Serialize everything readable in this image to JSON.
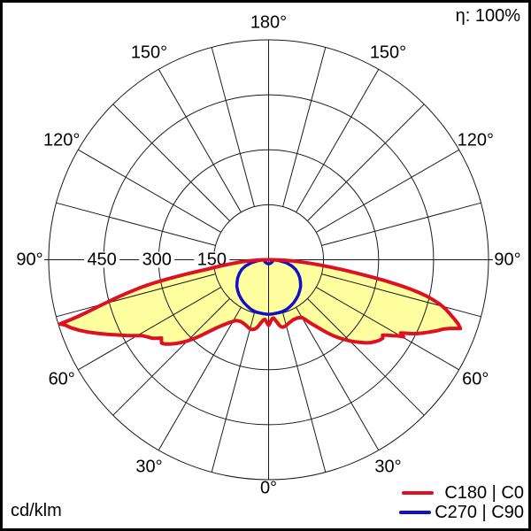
{
  "figure": {
    "efficiency_label": "η: 100%",
    "unit_label": "cd/klm"
  },
  "chart_data": {
    "type": "polar",
    "subtype": "luminous-intensity-distribution",
    "unit": "cd/klm",
    "efficiency_percent": 100,
    "max_value": 600,
    "rings": [
      150,
      300,
      450,
      600
    ],
    "ring_labels": [
      "150",
      "300",
      "450"
    ],
    "angle_step_deg": 15,
    "angle_label_step_deg": 30,
    "angle_labels": [
      "0°",
      "30°",
      "60°",
      "90°",
      "120°",
      "150°",
      "180°"
    ],
    "grid_color": "#1a1a1a",
    "series": [
      {
        "name": "C180 | C0",
        "color": "#dd1122",
        "fill": "#ffffa0",
        "left": [
          [
            90,
            4
          ],
          [
            88.5,
            25
          ],
          [
            87,
            50
          ],
          [
            85.5,
            75
          ],
          [
            84,
            100
          ],
          [
            83,
            122
          ],
          [
            82,
            148
          ],
          [
            81.2,
            172
          ],
          [
            80.6,
            200
          ],
          [
            80.1,
            228
          ],
          [
            79.7,
            252
          ],
          [
            79.3,
            278
          ],
          [
            78.9,
            300
          ],
          [
            78.5,
            322
          ],
          [
            78.1,
            342
          ],
          [
            77.7,
            360
          ],
          [
            77.2,
            378
          ],
          [
            76.7,
            398
          ],
          [
            76.2,
            418
          ],
          [
            75.7,
            438
          ],
          [
            75.2,
            458
          ],
          [
            74.7,
            478
          ],
          [
            74.2,
            500
          ],
          [
            73.8,
            520
          ],
          [
            73.4,
            545
          ],
          [
            73.1,
            570
          ],
          [
            72.9,
            596
          ],
          [
            72.2,
            583
          ],
          [
            71,
            570
          ],
          [
            69.5,
            550
          ],
          [
            68,
            528
          ],
          [
            66.5,
            505
          ],
          [
            65,
            482
          ],
          [
            63.5,
            460
          ],
          [
            62,
            440
          ],
          [
            60.5,
            420
          ],
          [
            59,
            402
          ],
          [
            57.5,
            392
          ],
          [
            56,
            383
          ],
          [
            54.8,
            372
          ],
          [
            53.8,
            362
          ],
          [
            53,
            366
          ],
          [
            52,
            370
          ],
          [
            50.8,
            364
          ],
          [
            49.5,
            354
          ],
          [
            48,
            342
          ],
          [
            46.5,
            328
          ],
          [
            45,
            313
          ],
          [
            43.5,
            297
          ],
          [
            42,
            280
          ],
          [
            40.5,
            263
          ],
          [
            39,
            248
          ],
          [
            37.5,
            235
          ],
          [
            36,
            224
          ],
          [
            34.5,
            215
          ],
          [
            33,
            207
          ],
          [
            31.5,
            200
          ],
          [
            30,
            194
          ],
          [
            28,
            188
          ],
          [
            26,
            186
          ],
          [
            24,
            185
          ],
          [
            22,
            186
          ],
          [
            20,
            188
          ],
          [
            18,
            191
          ],
          [
            16,
            194
          ],
          [
            14,
            196
          ],
          [
            12.5,
            195
          ],
          [
            11,
            192
          ],
          [
            9.5,
            187
          ],
          [
            8,
            179
          ],
          [
            6.5,
            171
          ],
          [
            5,
            165
          ],
          [
            3.5,
            163
          ],
          [
            2.5,
            167
          ],
          [
            1.5,
            172
          ],
          [
            0.7,
            176
          ],
          [
            0,
            179
          ]
        ],
        "right": [
          [
            0,
            179
          ],
          [
            1,
            174
          ],
          [
            2,
            168
          ],
          [
            3,
            163
          ],
          [
            4,
            160
          ],
          [
            5,
            160
          ],
          [
            6,
            164
          ],
          [
            7.5,
            171
          ],
          [
            9,
            180
          ],
          [
            10.5,
            186
          ],
          [
            12,
            188
          ],
          [
            14,
            187
          ],
          [
            16,
            184
          ],
          [
            18,
            181
          ],
          [
            20,
            179
          ],
          [
            22,
            177
          ],
          [
            24,
            177
          ],
          [
            26,
            177
          ],
          [
            28,
            179
          ],
          [
            30,
            182
          ],
          [
            31.5,
            191
          ],
          [
            33,
            203
          ],
          [
            34.5,
            215
          ],
          [
            36,
            228
          ],
          [
            37.5,
            243
          ],
          [
            39,
            258
          ],
          [
            40.5,
            273
          ],
          [
            42,
            287
          ],
          [
            43.5,
            300
          ],
          [
            45,
            313
          ],
          [
            46.5,
            325
          ],
          [
            48,
            337
          ],
          [
            49.5,
            349
          ],
          [
            51,
            359
          ],
          [
            52.5,
            367
          ],
          [
            54,
            374
          ],
          [
            55.5,
            378
          ],
          [
            56.5,
            373
          ],
          [
            57.5,
            383
          ],
          [
            58.5,
            396
          ],
          [
            59.5,
            409
          ],
          [
            60.3,
            424
          ],
          [
            61,
            412
          ],
          [
            61.8,
            424
          ],
          [
            62.6,
            438
          ],
          [
            63.5,
            452
          ],
          [
            64.5,
            465
          ],
          [
            65.7,
            480
          ],
          [
            67,
            497
          ],
          [
            68.3,
            512
          ],
          [
            69.3,
            530
          ],
          [
            70.3,
            556
          ],
          [
            71.3,
            546
          ],
          [
            72.3,
            532
          ],
          [
            73.4,
            516
          ],
          [
            74.5,
            500
          ],
          [
            75.5,
            482
          ],
          [
            76.3,
            462
          ],
          [
            77,
            444
          ],
          [
            77.7,
            420
          ],
          [
            78.3,
            396
          ],
          [
            78.8,
            372
          ],
          [
            79.3,
            348
          ],
          [
            79.8,
            322
          ],
          [
            80.3,
            296
          ],
          [
            80.8,
            270
          ],
          [
            81.3,
            246
          ],
          [
            81.9,
            220
          ],
          [
            82.5,
            196
          ],
          [
            83.2,
            170
          ],
          [
            84,
            144
          ],
          [
            84.9,
            118
          ],
          [
            85.9,
            92
          ],
          [
            87,
            66
          ],
          [
            88.2,
            42
          ],
          [
            89.2,
            20
          ],
          [
            90,
            4
          ]
        ]
      },
      {
        "name": "C270 | C90",
        "color": "#1111cc",
        "fill": "none",
        "left": [
          [
            90,
            14
          ],
          [
            85,
            28
          ],
          [
            80,
            48
          ],
          [
            75,
            65
          ],
          [
            70,
            78
          ],
          [
            65,
            88
          ],
          [
            60,
            97
          ],
          [
            55,
            105
          ],
          [
            50,
            113
          ],
          [
            45,
            119
          ],
          [
            40,
            125
          ],
          [
            35,
            130
          ],
          [
            30,
            135
          ],
          [
            25,
            139
          ],
          [
            20,
            143
          ],
          [
            15,
            146
          ],
          [
            10,
            147
          ],
          [
            5,
            148
          ],
          [
            0,
            149
          ]
        ],
        "right": [
          [
            0,
            149
          ],
          [
            5,
            148
          ],
          [
            10,
            147
          ],
          [
            15,
            146
          ],
          [
            20,
            144
          ],
          [
            25,
            140
          ],
          [
            30,
            136
          ],
          [
            35,
            131
          ],
          [
            40,
            126
          ],
          [
            45,
            120
          ],
          [
            50,
            114
          ],
          [
            55,
            106
          ],
          [
            60,
            98
          ],
          [
            65,
            89
          ],
          [
            70,
            79
          ],
          [
            75,
            66
          ],
          [
            80,
            50
          ],
          [
            85,
            30
          ],
          [
            90,
            14
          ]
        ]
      }
    ]
  }
}
